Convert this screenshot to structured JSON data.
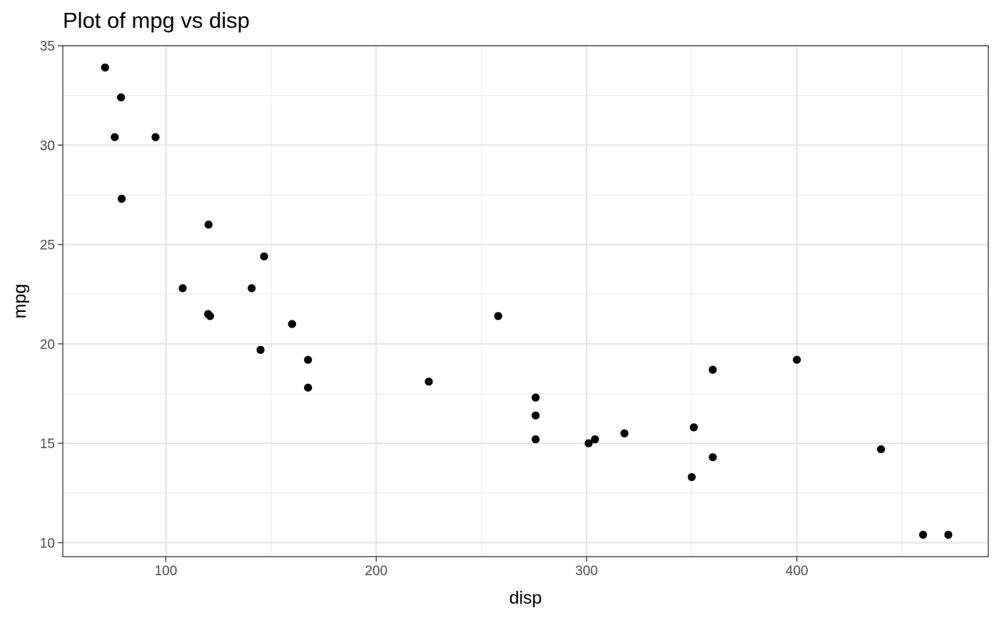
{
  "chart_data": {
    "type": "scatter",
    "title": "Plot of mpg vs disp",
    "xlabel": "disp",
    "ylabel": "mpg",
    "xlim": [
      51.0,
      491.0
    ],
    "ylim": [
      9.3,
      35.0
    ],
    "x_ticks": [
      100,
      200,
      300,
      400
    ],
    "y_ticks": [
      10,
      15,
      20,
      25,
      30,
      35
    ],
    "grid": true,
    "legend": "none",
    "point_color": "#000000",
    "points": [
      {
        "x": 71.1,
        "y": 33.9
      },
      {
        "x": 78.7,
        "y": 32.4
      },
      {
        "x": 75.7,
        "y": 30.4
      },
      {
        "x": 95.1,
        "y": 30.4
      },
      {
        "x": 79.0,
        "y": 27.3
      },
      {
        "x": 120.3,
        "y": 26.0
      },
      {
        "x": 146.7,
        "y": 24.4
      },
      {
        "x": 108.0,
        "y": 22.8
      },
      {
        "x": 140.8,
        "y": 22.8
      },
      {
        "x": 120.1,
        "y": 21.5
      },
      {
        "x": 121.0,
        "y": 21.4
      },
      {
        "x": 258.0,
        "y": 21.4
      },
      {
        "x": 160.0,
        "y": 21.0
      },
      {
        "x": 160.0,
        "y": 21.0
      },
      {
        "x": 145.0,
        "y": 19.7
      },
      {
        "x": 167.6,
        "y": 19.2
      },
      {
        "x": 400.0,
        "y": 19.2
      },
      {
        "x": 360.0,
        "y": 18.7
      },
      {
        "x": 225.0,
        "y": 18.1
      },
      {
        "x": 167.6,
        "y": 17.8
      },
      {
        "x": 275.8,
        "y": 17.3
      },
      {
        "x": 275.8,
        "y": 16.4
      },
      {
        "x": 351.0,
        "y": 15.8
      },
      {
        "x": 318.0,
        "y": 15.5
      },
      {
        "x": 275.8,
        "y": 15.2
      },
      {
        "x": 304.0,
        "y": 15.2
      },
      {
        "x": 301.0,
        "y": 15.0
      },
      {
        "x": 440.0,
        "y": 14.7
      },
      {
        "x": 360.0,
        "y": 14.3
      },
      {
        "x": 350.0,
        "y": 13.3
      },
      {
        "x": 460.0,
        "y": 10.4
      },
      {
        "x": 472.0,
        "y": 10.4
      }
    ]
  }
}
